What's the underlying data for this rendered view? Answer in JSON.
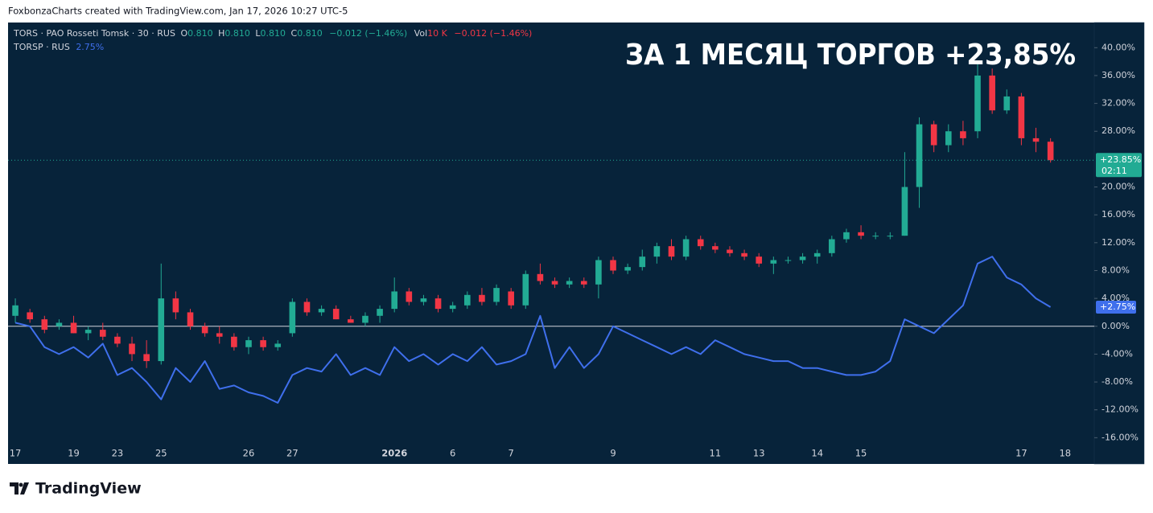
{
  "header": "FoxbonzaCharts created with TradingView.com, Jan 17, 2026 10:27 UTC-5",
  "footer": "TradingView",
  "chart_data": {
    "type": "candlestick",
    "annotation": "ЗА 1 МЕСЯЦ ТОРГОВ +23,85%",
    "legend": {
      "symbol": "TORS · PAO Rosseti Tomsk · 30 · RUS",
      "o": "O",
      "open": "0.810",
      "h": "H",
      "high": "0.810",
      "l": "L",
      "low": "0.810",
      "c": "C",
      "close": "0.810",
      "change": "−0.012 (−1.46%)",
      "vol": "Vol",
      "volume": "10 K",
      "vol_change": "−0.012 (−1.46%)",
      "compare_symbol": "TORSP · RUS",
      "compare_value": "2.75%"
    },
    "last_label": "+23.85%",
    "countdown": "02:11",
    "compare_label": "+2.75%",
    "xlim": [
      -0.5,
      74
    ],
    "xticks": [
      {
        "value": 0,
        "label": "17"
      },
      {
        "value": 4,
        "label": "19"
      },
      {
        "value": 7,
        "label": "23"
      },
      {
        "value": 10,
        "label": "25"
      },
      {
        "value": 16,
        "label": "26"
      },
      {
        "value": 19,
        "label": "27"
      },
      {
        "value": 26,
        "label": "2026"
      },
      {
        "value": 30,
        "label": "6"
      },
      {
        "value": 34,
        "label": "7"
      },
      {
        "value": 41,
        "label": "9"
      },
      {
        "value": 48,
        "label": "11"
      },
      {
        "value": 51,
        "label": "13"
      },
      {
        "value": 55,
        "label": "14"
      },
      {
        "value": 58,
        "label": "15"
      },
      {
        "value": 69,
        "label": "17"
      },
      {
        "value": 72,
        "label": "18"
      }
    ],
    "ylim": [
      -17,
      43.5
    ],
    "yticks": [
      {
        "value": 40,
        "label": "40.00%"
      },
      {
        "value": 36,
        "label": "36.00%"
      },
      {
        "value": 32,
        "label": "32.00%"
      },
      {
        "value": 28,
        "label": "28.00%"
      },
      {
        "value": 20,
        "label": "20.00%"
      },
      {
        "value": 16,
        "label": "16.00%"
      },
      {
        "value": 12,
        "label": "12.00%"
      },
      {
        "value": 8,
        "label": "8.00%"
      },
      {
        "value": 4,
        "label": "4.00%"
      },
      {
        "value": 0,
        "label": "0.00%"
      },
      {
        "value": -4,
        "label": "-4.00%"
      },
      {
        "value": -8,
        "label": "-8.00%"
      },
      {
        "value": -12,
        "label": "-12.00%"
      },
      {
        "value": -16,
        "label": "-16.00%"
      }
    ],
    "series": [
      {
        "name": "TORS",
        "up_color": "#22ab94",
        "down_color": "#f23645",
        "open": [
          1.5,
          2,
          1,
          0,
          0.5,
          -1,
          -0.5,
          -1.5,
          -2.5,
          -4,
          -5,
          4,
          2,
          0,
          -1,
          -1.5,
          -3,
          -2,
          -3,
          -1,
          3.5,
          2,
          2.5,
          1,
          0.5,
          1.5,
          2.5,
          5,
          3.5,
          4,
          2.5,
          3,
          4.5,
          3.5,
          5,
          3,
          7.5,
          6.5,
          6,
          6.5,
          6,
          9.5,
          8,
          8.5,
          10,
          11.5,
          10,
          12.5,
          11.5,
          11,
          10.5,
          10,
          9,
          9.5,
          9.5,
          10,
          10.5,
          12.5,
          13.5,
          13,
          13,
          13,
          20,
          29,
          26,
          28,
          28,
          36,
          31,
          33,
          27,
          26.5
        ],
        "high": [
          4,
          2.5,
          1.5,
          1,
          1.5,
          0,
          0.5,
          -1,
          -1.5,
          -2,
          9,
          5,
          2.5,
          0.5,
          0,
          -1,
          -1.5,
          -1.5,
          -2,
          4,
          4,
          3,
          3,
          1.5,
          2,
          3,
          7,
          5.5,
          4.5,
          4.5,
          3.5,
          5,
          5.5,
          6,
          5.5,
          8,
          9,
          7,
          7,
          7,
          10,
          10,
          9,
          11,
          12,
          12.5,
          13,
          13,
          12,
          11.5,
          11,
          10.5,
          10,
          10,
          10.5,
          11,
          13,
          14,
          14.5,
          13.5,
          13.5,
          25,
          30,
          29.5,
          29,
          29.5,
          38,
          37,
          34,
          33.5,
          28.5,
          27
        ],
        "low": [
          0.5,
          0.5,
          -1,
          -0.5,
          -1,
          -2,
          -2,
          -3,
          -5,
          -6,
          -5.5,
          1,
          -0.5,
          -1.5,
          -2.5,
          -3.5,
          -4,
          -3.5,
          -3.5,
          -1.5,
          1.5,
          1.5,
          1,
          0.5,
          0,
          0.5,
          2,
          3,
          3,
          2,
          2,
          2.5,
          3,
          3,
          2.5,
          2.5,
          6,
          5.5,
          5.5,
          5.5,
          4,
          7.5,
          7.5,
          8,
          9,
          9.5,
          9.5,
          11,
          10.5,
          10,
          9.5,
          8.5,
          7.5,
          9,
          9,
          9,
          10,
          12,
          12.5,
          12.5,
          12.5,
          13,
          17,
          25,
          25,
          26,
          27,
          30.5,
          30.5,
          26,
          25,
          23.5
        ],
        "close": [
          3,
          1,
          -0.5,
          0.5,
          -1,
          -0.5,
          -1.5,
          -2.5,
          -4,
          -5,
          4,
          2,
          0,
          -1,
          -1.5,
          -3,
          -2,
          -3,
          -2.5,
          3.5,
          2,
          2.5,
          1,
          0.5,
          1.5,
          2.5,
          5,
          3.5,
          4,
          2.5,
          3,
          4.5,
          3.5,
          5.5,
          3,
          7.5,
          6.5,
          6,
          6.5,
          6,
          9.5,
          8,
          8.5,
          10,
          11.5,
          10,
          12.5,
          11.5,
          11,
          10.5,
          10,
          9,
          9.5,
          9.5,
          10,
          10.5,
          12.5,
          13.5,
          13,
          13,
          13,
          20,
          29,
          26,
          28,
          27,
          36,
          31,
          33,
          27,
          26.5,
          23.85
        ]
      },
      {
        "name": "TORSP",
        "color": "#3f6fec",
        "values": [
          0.5,
          0,
          -3,
          -4,
          -3,
          -4.5,
          -2.5,
          -7,
          -6,
          -8,
          -10.5,
          -6,
          -8,
          -5,
          -9,
          -8.5,
          -9.5,
          -10,
          -11,
          -7,
          -6,
          -6.5,
          -4,
          -7,
          -6,
          -7,
          -3,
          -5,
          -4,
          -5.5,
          -4,
          -5,
          -3,
          -5.5,
          -5,
          -4,
          1.5,
          -6,
          -3,
          -6,
          -4,
          0,
          -1,
          -2,
          -3,
          -4,
          -3,
          -4,
          -2,
          -3,
          -4,
          -4.5,
          -5,
          -5,
          -6,
          -6,
          -6.5,
          -7,
          -7,
          -6.5,
          -5,
          1,
          0,
          -1,
          1,
          3,
          9,
          10,
          7,
          6,
          4,
          2.75
        ]
      }
    ]
  }
}
